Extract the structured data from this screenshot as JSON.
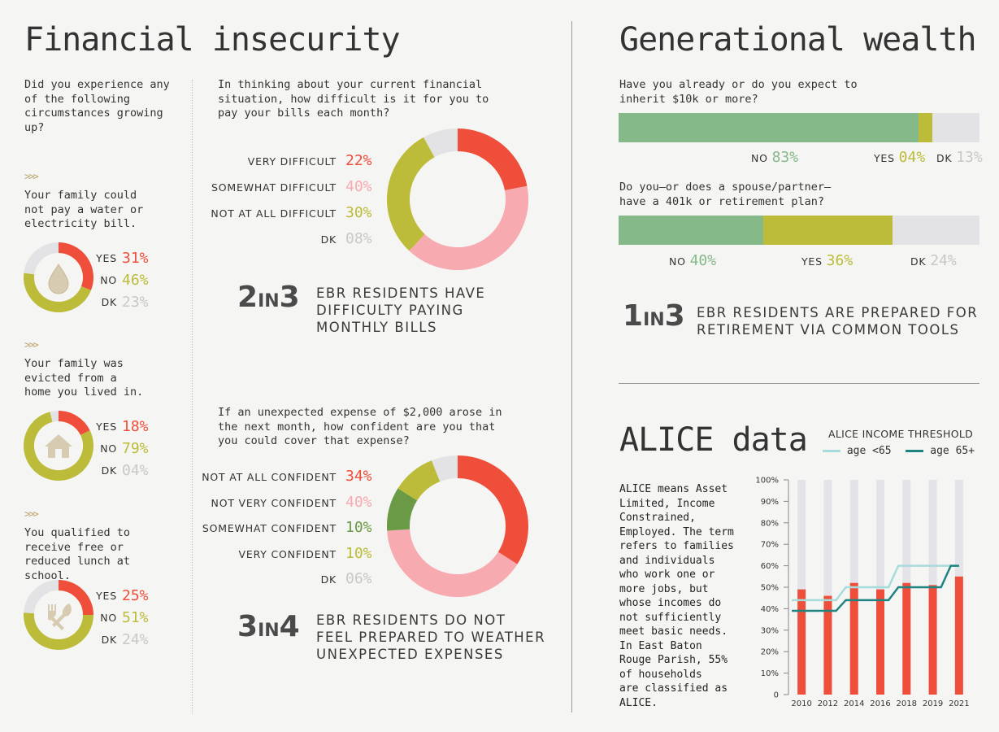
{
  "colors": {
    "red": "#ef4e3b",
    "pink": "#f7aab0",
    "olive": "#bcbc3a",
    "darkgreen": "#6a9a45",
    "green": "#85b98a",
    "gray": "#e3e3e6",
    "dk": "#c8c8c8",
    "teal": "#1e8482",
    "lightteal": "#a6dcdc",
    "tan": "#b8a36a"
  },
  "left": {
    "title": "Financial insecurity",
    "intro": "Did you experience any of the following circumstances growing up?",
    "items": [
      {
        "chev": ">>>",
        "text": "Your family could not pay a water or electricity bill.",
        "icon": "water-drop-icon",
        "answers": [
          {
            "label": "YES",
            "value": "31%"
          },
          {
            "label": "NO",
            "value": "46%"
          },
          {
            "label": "DK",
            "value": "23%"
          }
        ]
      },
      {
        "chev": ">>>",
        "text": "Your family was evicted from a home you lived in.",
        "icon": "house-icon",
        "answers": [
          {
            "label": "YES",
            "value": "18%"
          },
          {
            "label": "NO",
            "value": "79%"
          },
          {
            "label": "DK",
            "value": "04%"
          }
        ]
      },
      {
        "chev": ">>>",
        "text": "You qualified to receive free or reduced lunch at school.",
        "icon": "fork-knife-icon",
        "answers": [
          {
            "label": "YES",
            "value": "25%"
          },
          {
            "label": "NO",
            "value": "51%"
          },
          {
            "label": "DK",
            "value": "24%"
          }
        ]
      }
    ]
  },
  "bills": {
    "question": "In thinking about your current financial situation, how difficult is it for you to pay your bills each month?",
    "answers": [
      {
        "label": "VERY DIFFICULT",
        "value": "22%"
      },
      {
        "label": "SOMEWHAT DIFFICULT",
        "value": "40%"
      },
      {
        "label": "NOT AT ALL DIFFICULT",
        "value": "30%"
      },
      {
        "label": "DK",
        "value": "08%"
      }
    ],
    "stat_a": "2",
    "stat_in": "IN",
    "stat_b": "3",
    "stat_text": [
      "EBR RESIDENTS HAVE",
      "DIFFICULTY PAYING",
      "MONTHLY BILLS"
    ]
  },
  "expense": {
    "question": "If an unexpected expense of $2,000 arose in the next month, how confident are you that you could cover that expense?",
    "answers": [
      {
        "label": "NOT AT ALL CONFIDENT",
        "value": "34%"
      },
      {
        "label": "NOT VERY CONFIDENT",
        "value": "40%"
      },
      {
        "label": "SOMEWHAT CONFIDENT",
        "value": "10%"
      },
      {
        "label": "VERY CONFIDENT",
        "value": "10%"
      },
      {
        "label": "DK",
        "value": "06%"
      }
    ],
    "stat_a": "3",
    "stat_in": "IN",
    "stat_b": "4",
    "stat_text": [
      "EBR RESIDENTS DO NOT",
      "FEEL PREPARED TO WEATHER",
      "UNEXPECTED EXPENSES"
    ]
  },
  "gen": {
    "title": "Generational wealth",
    "q1": "Have you already or do you expect to inherit $10k or more?",
    "q1_answers": [
      {
        "label": "NO",
        "value": "83%"
      },
      {
        "label": "YES",
        "value": "04%"
      },
      {
        "label": "DK",
        "value": "13%"
      }
    ],
    "q2": "Do you—or does a spouse/partner— have a 401k or retirement plan?",
    "q2_answers": [
      {
        "label": "NO",
        "value": "40%"
      },
      {
        "label": "YES",
        "value": "36%"
      },
      {
        "label": "DK",
        "value": "24%"
      }
    ],
    "stat_a": "1",
    "stat_in": "IN",
    "stat_b": "3",
    "stat_text": [
      "EBR RESIDENTS ARE PREPARED FOR",
      "RETIREMENT VIA COMMON TOOLS"
    ]
  },
  "alice": {
    "title": "ALICE data",
    "desc": [
      "ALICE means Asset",
      "Limited, Income",
      "Constrained,",
      "Employed. The term",
      "refers to families",
      "and individuals",
      "who work one or",
      "more jobs, but",
      "whose incomes do",
      "not sufficiently",
      "meet basic needs.",
      "In East Baton",
      "Rouge Parish, 55%",
      "of households",
      "are classified as",
      "ALICE."
    ],
    "legend_title": "ALICE INCOME THRESHOLD"
  },
  "chart_data": [
    {
      "type": "pie",
      "subtype": "donut",
      "slices": [
        {
          "label": "YES",
          "value": 31
        },
        {
          "label": "NO",
          "value": 46
        },
        {
          "label": "DK",
          "value": 23
        }
      ]
    },
    {
      "type": "pie",
      "subtype": "donut",
      "slices": [
        {
          "label": "YES",
          "value": 18
        },
        {
          "label": "NO",
          "value": 79
        },
        {
          "label": "DK",
          "value": 4
        }
      ]
    },
    {
      "type": "pie",
      "subtype": "donut",
      "slices": [
        {
          "label": "YES",
          "value": 25
        },
        {
          "label": "NO",
          "value": 51
        },
        {
          "label": "DK",
          "value": 24
        }
      ]
    },
    {
      "type": "pie",
      "subtype": "donut",
      "slices": [
        {
          "label": "VERY DIFFICULT",
          "value": 22
        },
        {
          "label": "SOMEWHAT DIFFICULT",
          "value": 40
        },
        {
          "label": "NOT AT ALL DIFFICULT",
          "value": 30
        },
        {
          "label": "DK",
          "value": 8
        }
      ]
    },
    {
      "type": "pie",
      "subtype": "donut",
      "slices": [
        {
          "label": "NOT AT ALL CONFIDENT",
          "value": 34
        },
        {
          "label": "NOT VERY CONFIDENT",
          "value": 40
        },
        {
          "label": "SOMEWHAT CONFIDENT",
          "value": 10
        },
        {
          "label": "VERY CONFIDENT",
          "value": 10
        },
        {
          "label": "DK",
          "value": 6
        }
      ]
    },
    {
      "type": "bar",
      "subtype": "stacked-horizontal",
      "segments": [
        {
          "label": "NO",
          "value": 83
        },
        {
          "label": "YES",
          "value": 4
        },
        {
          "label": "DK",
          "value": 13
        }
      ]
    },
    {
      "type": "bar",
      "subtype": "stacked-horizontal",
      "segments": [
        {
          "label": "NO",
          "value": 40
        },
        {
          "label": "YES",
          "value": 36
        },
        {
          "label": "DK",
          "value": 24
        }
      ]
    },
    {
      "type": "bar",
      "title": "ALICE INCOME THRESHOLD",
      "categories": [
        "2010",
        "2012",
        "2014",
        "2016",
        "2018",
        "2019",
        "2021"
      ],
      "ylim": [
        0,
        100
      ],
      "yticks": [
        "0",
        "10%",
        "20%",
        "30%",
        "40%",
        "50%",
        "60%",
        "70%",
        "80%",
        "90%",
        "100%"
      ],
      "series": [
        {
          "type": "bar",
          "values": [
            49,
            46,
            52,
            49,
            52,
            51,
            55
          ]
        },
        {
          "type": "line",
          "name": "age <65",
          "values": [
            44,
            44,
            50,
            50,
            60,
            60,
            60
          ]
        },
        {
          "type": "line",
          "name": "age 65+",
          "values": [
            39,
            39,
            44,
            44,
            50,
            50,
            60
          ]
        }
      ],
      "legend": "top"
    }
  ]
}
